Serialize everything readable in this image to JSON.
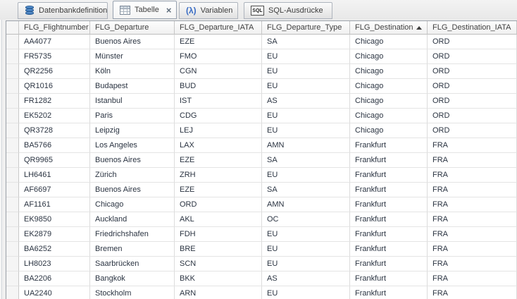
{
  "tabs": {
    "items": [
      {
        "label": "Datenbankdefinition",
        "icon": "database-icon",
        "active": false
      },
      {
        "label": "Tabelle",
        "icon": "table-icon",
        "active": true,
        "closable": true
      },
      {
        "label": "Variablen",
        "icon": "lambda-icon",
        "active": false
      },
      {
        "label": "SQL-Ausdrücke",
        "icon": "sql-icon",
        "active": false
      }
    ]
  },
  "icons": {
    "lambda_glyph": "(λ)",
    "sql_glyph": "SQL",
    "close_glyph": "×",
    "sort_ascending": "up-triangle"
  },
  "colors": {
    "icon_blue": "#3f76c0",
    "data_text": "#2b3442",
    "header_text": "#404040"
  },
  "table": {
    "columns": [
      {
        "name": "FLG_Flightnumber",
        "sort": null
      },
      {
        "name": "FLG_Departure",
        "sort": null
      },
      {
        "name": "FLG_Departure_IATA",
        "sort": null
      },
      {
        "name": "FLG_Departure_Type",
        "sort": null
      },
      {
        "name": "FLG_Destination",
        "sort": "asc"
      },
      {
        "name": "FLG_Destination_IATA",
        "sort": null
      }
    ],
    "rows": [
      [
        "AA4077",
        "Buenos Aires",
        "EZE",
        "SA",
        "Chicago",
        "ORD"
      ],
      [
        "FR5735",
        "Münster",
        "FMO",
        "EU",
        "Chicago",
        "ORD"
      ],
      [
        "QR2256",
        "Köln",
        "CGN",
        "EU",
        "Chicago",
        "ORD"
      ],
      [
        "QR1016",
        "Budapest",
        "BUD",
        "EU",
        "Chicago",
        "ORD"
      ],
      [
        "FR1282",
        "Istanbul",
        "IST",
        "AS",
        "Chicago",
        "ORD"
      ],
      [
        "EK5202",
        "Paris",
        "CDG",
        "EU",
        "Chicago",
        "ORD"
      ],
      [
        "QR3728",
        "Leipzig",
        "LEJ",
        "EU",
        "Chicago",
        "ORD"
      ],
      [
        "BA5766",
        "Los Angeles",
        "LAX",
        "AMN",
        "Frankfurt",
        "FRA"
      ],
      [
        "QR9965",
        "Buenos Aires",
        "EZE",
        "SA",
        "Frankfurt",
        "FRA"
      ],
      [
        "LH6461",
        "Zürich",
        "ZRH",
        "EU",
        "Frankfurt",
        "FRA"
      ],
      [
        "AF6697",
        "Buenos Aires",
        "EZE",
        "SA",
        "Frankfurt",
        "FRA"
      ],
      [
        "AF1161",
        "Chicago",
        "ORD",
        "AMN",
        "Frankfurt",
        "FRA"
      ],
      [
        "EK9850",
        "Auckland",
        "AKL",
        "OC",
        "Frankfurt",
        "FRA"
      ],
      [
        "EK2879",
        "Friedrichshafen",
        "FDH",
        "EU",
        "Frankfurt",
        "FRA"
      ],
      [
        "BA6252",
        "Bremen",
        "BRE",
        "EU",
        "Frankfurt",
        "FRA"
      ],
      [
        "LH8023",
        "Saarbrücken",
        "SCN",
        "EU",
        "Frankfurt",
        "FRA"
      ],
      [
        "BA2206",
        "Bangkok",
        "BKK",
        "AS",
        "Frankfurt",
        "FRA"
      ],
      [
        "UA2240",
        "Stockholm",
        "ARN",
        "EU",
        "Frankfurt",
        "FRA"
      ]
    ]
  }
}
